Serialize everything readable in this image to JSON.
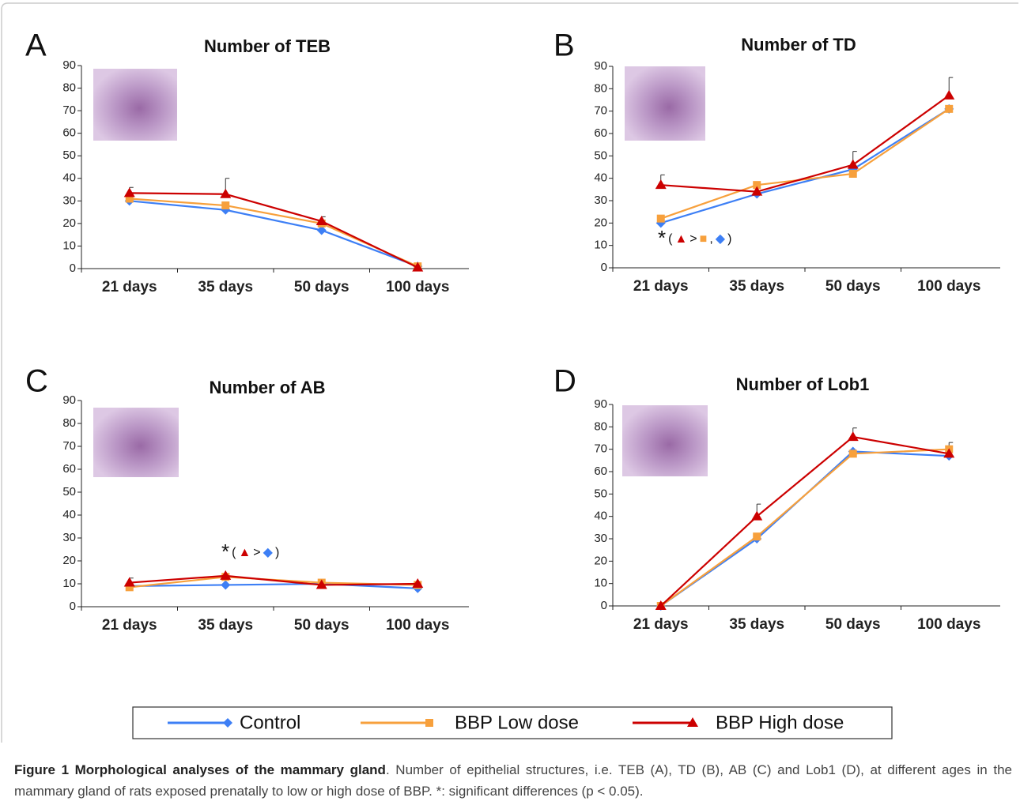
{
  "chart_data": [
    {
      "type": "line",
      "panel": "A",
      "title": "Number of TEB",
      "categories": [
        "21 days",
        "35 days",
        "50 days",
        "100 days"
      ],
      "ylim": [
        0,
        90
      ],
      "yticks": [
        0,
        10,
        20,
        30,
        40,
        50,
        60,
        70,
        80,
        90
      ],
      "series": [
        {
          "values": [
            30,
            26,
            17,
            1
          ]
        },
        {
          "values": [
            31,
            28,
            20,
            1
          ]
        },
        {
          "values": [
            33.5,
            33,
            21,
            0.5
          ],
          "errors": [
            2.5,
            7,
            2,
            1
          ]
        }
      ]
    },
    {
      "type": "line",
      "panel": "B",
      "title": "Number of TD",
      "categories": [
        "21 days",
        "35 days",
        "50 days",
        "100 days"
      ],
      "ylim": [
        0,
        90
      ],
      "yticks": [
        0,
        10,
        20,
        30,
        40,
        50,
        60,
        70,
        80,
        90
      ],
      "series": [
        {
          "values": [
            20,
            33,
            44,
            71
          ]
        },
        {
          "values": [
            22,
            37,
            42,
            71
          ]
        },
        {
          "values": [
            37,
            34,
            46,
            77
          ],
          "errors": [
            4.5,
            3,
            6,
            8
          ]
        }
      ],
      "annotation": [
        "*",
        "(",
        "▲",
        ">",
        "■",
        ",",
        "◆",
        ")"
      ]
    },
    {
      "type": "line",
      "panel": "C",
      "title": "Number of AB",
      "categories": [
        "21 days",
        "35 days",
        "50 days",
        "100 days"
      ],
      "ylim": [
        0,
        90
      ],
      "yticks": [
        0,
        10,
        20,
        30,
        40,
        50,
        60,
        70,
        80,
        90
      ],
      "series": [
        {
          "values": [
            9,
            9.5,
            10,
            8
          ]
        },
        {
          "values": [
            8.5,
            13,
            10.5,
            9.5
          ]
        },
        {
          "values": [
            10.5,
            13.5,
            9.5,
            10
          ],
          "errors": [
            2,
            1,
            1,
            1
          ]
        }
      ],
      "annotation": [
        "*",
        "(",
        "▲",
        ">",
        "◆",
        ")"
      ]
    },
    {
      "type": "line",
      "panel": "D",
      "title": "Number of Lob1",
      "categories": [
        "21 days",
        "35 days",
        "50 days",
        "100 days"
      ],
      "ylim": [
        0,
        90
      ],
      "yticks": [
        0,
        10,
        20,
        30,
        40,
        50,
        60,
        70,
        80,
        90
      ],
      "series": [
        {
          "values": [
            0,
            30,
            69,
            67
          ]
        },
        {
          "values": [
            0,
            31,
            68,
            70
          ]
        },
        {
          "values": [
            0,
            40,
            75.5,
            68
          ],
          "errors": [
            0,
            5.5,
            4,
            5
          ]
        }
      ]
    }
  ],
  "legend": [
    {
      "name": "Control",
      "color": "#3d7ff5",
      "marker": "diamond"
    },
    {
      "name": "BBP Low dose",
      "color": "#f7a03c",
      "marker": "square"
    },
    {
      "name": "BBP High dose",
      "color": "#cc0000",
      "marker": "triangle"
    }
  ],
  "caption": {
    "title": "Figure 1 Morphological analyses of the mammary gland",
    "text": ". Number of epithelial structures, i.e. TEB (A), TD (B), AB (C) and Lob1 (D), at different ages in the mammary gland of rats exposed prenatally to low or high dose of BBP. *: significant differences (p < 0.05)."
  }
}
